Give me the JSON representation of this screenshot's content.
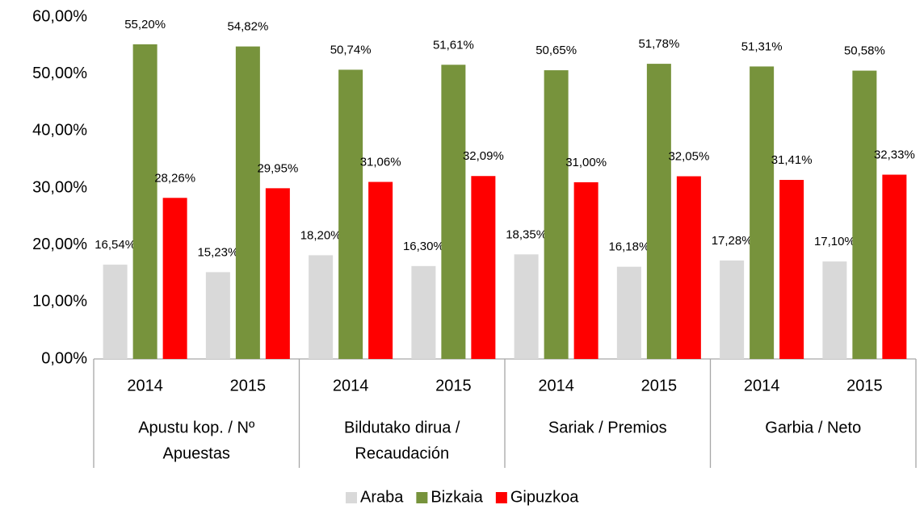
{
  "chart_data": {
    "type": "bar",
    "groups": [
      {
        "label": [
          "Apustu kop. /   Nº",
          "Apuestas"
        ],
        "categories": [
          "2014",
          "2015"
        ]
      },
      {
        "label": [
          "Bildutako dirua /",
          "Recaudación"
        ],
        "categories": [
          "2014",
          "2015"
        ]
      },
      {
        "label": [
          "Sariak / Premios"
        ],
        "categories": [
          "2014",
          "2015"
        ]
      },
      {
        "label": [
          "Garbia / Neto"
        ],
        "categories": [
          "2014",
          "2015"
        ]
      }
    ],
    "series": [
      {
        "name": "Araba",
        "color": "#d9d9d9",
        "values": [
          16.54,
          15.23,
          18.2,
          16.3,
          18.35,
          16.18,
          17.28,
          17.1
        ],
        "value_labels": [
          "16,54%",
          "15,23%",
          "18,20%",
          "16,30%",
          "18,35%",
          "16,18%",
          "17,28%",
          "17,10%"
        ]
      },
      {
        "name": "Bizkaia",
        "color": "#77933c",
        "values": [
          55.2,
          54.82,
          50.74,
          51.61,
          50.65,
          51.78,
          51.31,
          50.58
        ],
        "value_labels": [
          "55,20%",
          "54,82%",
          "50,74%",
          "51,61%",
          "50,65%",
          "51,78%",
          "51,31%",
          "50,58%"
        ]
      },
      {
        "name": "Gipuzkoa",
        "color": "#ff0000",
        "values": [
          28.26,
          29.95,
          31.06,
          32.09,
          31.0,
          32.05,
          31.41,
          32.33
        ],
        "value_labels": [
          "28,26%",
          "29,95%",
          "31,06%",
          "32,09%",
          "31,00%",
          "32,05%",
          "31,41%",
          "32,33%"
        ]
      }
    ],
    "ylim": [
      0,
      60
    ],
    "yticks": [
      {
        "value": 0,
        "label": "0,00%"
      },
      {
        "value": 10,
        "label": "10,00%"
      },
      {
        "value": 20,
        "label": "20,00%"
      },
      {
        "value": 30,
        "label": "30,00%"
      },
      {
        "value": 40,
        "label": "40,00%"
      },
      {
        "value": 50,
        "label": "50,00%"
      },
      {
        "value": 60,
        "label": "60,00%"
      }
    ],
    "grid": false,
    "legend": "bottom"
  }
}
